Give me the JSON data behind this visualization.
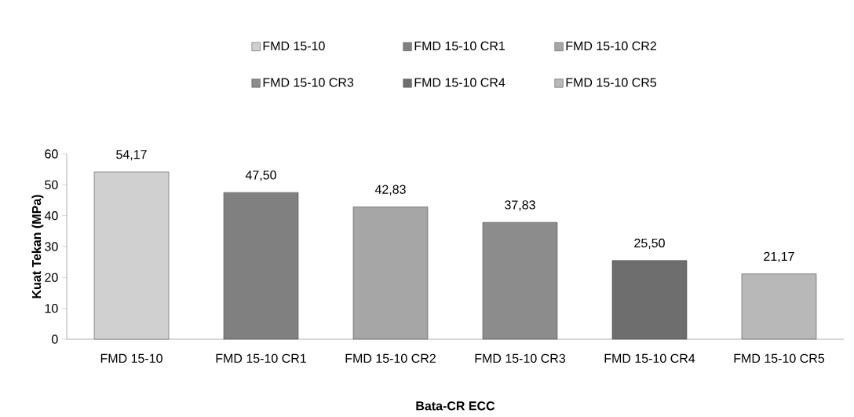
{
  "chart_data": {
    "type": "bar",
    "xlabel": "Bata-CR ECC",
    "ylabel": "Kuat Tekan (MPa)",
    "categories": [
      "FMD 15-10",
      "FMD 15-10 CR1",
      "FMD 15-10 CR2",
      "FMD 15-10 CR3",
      "FMD 15-10 CR4",
      "FMD 15-10 CR5"
    ],
    "series": [
      {
        "name": "FMD 15-10",
        "color": "#d0d0d0",
        "values": [
          54.17,
          null,
          null,
          null,
          null,
          null
        ],
        "value_labels": [
          "54,17",
          null,
          null,
          null,
          null,
          null
        ]
      },
      {
        "name": "FMD 15-10 CR1",
        "color": "#808080",
        "values": [
          null,
          47.5,
          null,
          null,
          null,
          null
        ],
        "value_labels": [
          null,
          "47,50",
          null,
          null,
          null,
          null
        ]
      },
      {
        "name": "FMD 15-10 CR2",
        "color": "#a6a6a6",
        "values": [
          null,
          null,
          42.83,
          null,
          null,
          null
        ],
        "value_labels": [
          null,
          null,
          "42,83",
          null,
          null,
          null
        ]
      },
      {
        "name": "FMD 15-10 CR3",
        "color": "#8c8c8c",
        "values": [
          null,
          null,
          null,
          37.83,
          null,
          null
        ],
        "value_labels": [
          null,
          null,
          null,
          "37,83",
          null,
          null
        ]
      },
      {
        "name": "FMD 15-10 CR4",
        "color": "#6e6e6e",
        "values": [
          null,
          null,
          null,
          null,
          25.5,
          null
        ],
        "value_labels": [
          null,
          null,
          null,
          null,
          "25,50",
          null
        ]
      },
      {
        "name": "FMD 15-10 CR5",
        "color": "#b8b8b8",
        "values": [
          null,
          null,
          null,
          null,
          null,
          21.17
        ],
        "value_labels": [
          null,
          null,
          null,
          null,
          null,
          "21,17"
        ]
      }
    ],
    "ylim": [
      0,
      60
    ],
    "yticks": [
      0,
      10,
      20,
      30,
      40,
      50,
      60
    ],
    "grid": false,
    "legend": "top"
  }
}
